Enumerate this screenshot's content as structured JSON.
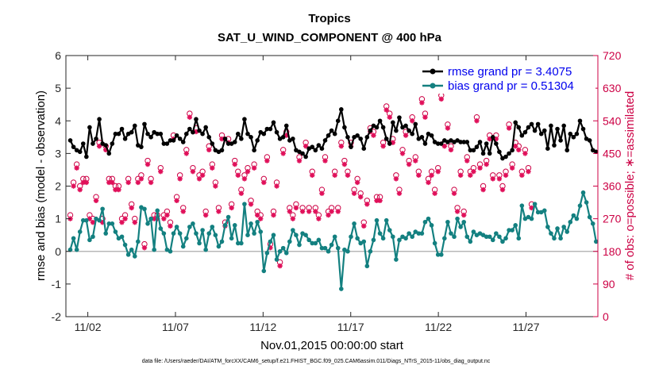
{
  "chart_data": {
    "type": "line",
    "title": "Tropics",
    "subtitle": "SAT_U_WIND_COMPONENT @ 400 hPa",
    "xlabel": "Nov.01,2015 00:00:00 start",
    "ylabel_left": "rmse and bias (model - observation)",
    "ylabel_right": "# of obs: o=possible; ∗=assimilated",
    "footnote": "data file: /Users/raeder/DAI/ATM_forcXX/CAM6_setup/f.e21.FHIST_BGC.f09_025.CAM6assim.011/Diags_NTrS_2015-11/obs_diag_output.nc",
    "xlim": [
      0.75,
      31.1
    ],
    "ylim_left": [
      -2,
      6
    ],
    "ylim_right": [
      0,
      720
    ],
    "x_ticks": [
      2,
      7,
      12,
      17,
      22,
      27
    ],
    "x_tick_labels": [
      "11/02",
      "11/07",
      "11/12",
      "11/17",
      "11/22",
      "11/27"
    ],
    "y_left_ticks": [
      -2,
      -1,
      0,
      1,
      2,
      3,
      4,
      5,
      6
    ],
    "y_left_tick_labels": [
      "-2",
      "-1",
      "0",
      "1",
      "2",
      "3",
      "4",
      "5",
      "6"
    ],
    "y_right_ticks": [
      0,
      90,
      180,
      270,
      360,
      450,
      540,
      630,
      720
    ],
    "y_right_tick_labels": [
      "0",
      "90",
      "180",
      "270",
      "360",
      "450",
      "540",
      "630",
      "720"
    ],
    "series": [
      {
        "name": "rmse grand pr = 3.4075",
        "color": "#000000",
        "values": [
          3.4,
          3.2,
          3.1,
          3.05,
          3.3,
          2.9,
          3.8,
          3.3,
          3.45,
          4.05,
          3.3,
          3.25,
          3.0,
          3.3,
          3.6,
          3.6,
          3.75,
          3.45,
          3.6,
          3.65,
          3.85,
          3.25,
          3.2,
          3.9,
          3.6,
          3.5,
          3.65,
          3.6,
          3.6,
          3.3,
          3.3,
          3.4,
          3.4,
          3.55,
          3.45,
          3.35,
          3.6,
          3.75,
          3.65,
          4.05,
          3.7,
          3.6,
          3.8,
          3.5,
          3.3,
          3.1,
          3.05,
          3.1,
          3.45,
          3.3,
          3.3,
          3.35,
          3.6,
          3.45,
          4.05,
          3.6,
          3.5,
          3.1,
          3.4,
          3.65,
          3.6,
          3.75,
          3.75,
          3.95,
          3.65,
          3.45,
          3.5,
          3.85,
          3.4,
          3.45,
          3.1,
          3.05,
          3.0,
          2.9,
          3.15,
          3.2,
          3.1,
          3.25,
          3.15,
          3.4,
          3.55,
          3.7,
          3.6,
          4.0,
          4.35,
          3.8,
          3.5,
          3.2,
          3.5,
          3.55,
          3.45,
          3.15,
          3.5,
          3.7,
          3.85,
          3.8,
          4.0,
          3.8,
          3.45,
          3.3,
          3.95,
          3.7,
          4.1,
          3.8,
          3.85,
          3.7,
          3.6,
          3.9,
          3.45,
          3.5,
          3.3,
          3.6,
          3.55,
          3.35,
          3.3,
          3.3,
          3.4,
          3.35,
          3.4,
          3.35,
          3.4,
          3.35,
          3.35,
          3.35,
          3.1,
          3.1,
          3.2,
          3.35,
          3.0,
          3.3,
          3.0,
          3.5,
          3.3,
          3.05,
          2.85,
          2.9,
          3.0,
          3.1,
          3.95,
          3.8,
          3.55,
          3.65,
          3.8,
          3.9,
          3.7,
          3.9,
          3.6,
          3.7,
          3.15,
          3.85,
          3.25,
          3.75,
          3.4,
          3.85,
          3.1,
          3.6,
          3.5,
          3.6,
          4.0,
          3.75,
          3.45,
          3.4,
          3.1,
          3.05
        ]
      },
      {
        "name": "bias grand pr = 0.51304",
        "color": "#138080",
        "values": [
          0.05,
          0.4,
          0.05,
          0.6,
          0.95,
          0.95,
          0.35,
          0.45,
          1.0,
          0.95,
          1.3,
          0.55,
          0.85,
          0.85,
          0.6,
          0.4,
          0.45,
          0.2,
          -0.1,
          0.05,
          -0.15,
          0.3,
          1.35,
          1.3,
          0.85,
          1.0,
          0.05,
          1.25,
          0.7,
          0.55,
          0.05,
          0.0,
          0.55,
          0.75,
          0.55,
          0.15,
          0.4,
          0.75,
          0.85,
          0.55,
          0.25,
          0.65,
          0.05,
          0.55,
          0.75,
          0.5,
          0.15,
          0.3,
          0.8,
          1.05,
          0.4,
          0.8,
          0.25,
          0.25,
          1.45,
          0.5,
          0.85,
          0.55,
          0.9,
          0.6,
          -0.6,
          -0.05,
          0.3,
          0.5,
          -0.25,
          0.0,
          0.1,
          -0.05,
          0.3,
          0.65,
          0.5,
          0.2,
          0.55,
          0.5,
          0.35,
          0.25,
          0.25,
          0.35,
          0.1,
          0.1,
          0.0,
          0.2,
          0.45,
          0.1,
          -1.15,
          0.05,
          0.0,
          0.45,
          0.85,
          0.4,
          0.25,
          0.3,
          -0.45,
          0.0,
          0.35,
          0.95,
          0.55,
          0.4,
          0.95,
          0.65,
          0.45,
          -0.25,
          0.35,
          0.45,
          0.4,
          0.55,
          0.45,
          0.6,
          0.55,
          0.55,
          0.9,
          1.0,
          0.8,
          0.25,
          -0.1,
          -0.1,
          0.4,
          0.9,
          0.55,
          0.45,
          1.0,
          0.75,
          0.9,
          0.45,
          0.3,
          0.6,
          0.5,
          0.55,
          0.5,
          0.45,
          0.45,
          0.35,
          0.55,
          0.45,
          0.3,
          0.4,
          0.65,
          0.65,
          0.8,
          0.4,
          1.4,
          1.0,
          1.05,
          1.0,
          1.45,
          1.2,
          1.2,
          1.25,
          0.75,
          0.55,
          0.4,
          0.7,
          0.4,
          0.75,
          0.6,
          0.9,
          1.1,
          1.0,
          1.4,
          1.8,
          1.5,
          1.05,
          0.85,
          0.3
        ]
      }
    ],
    "obs_possible": {
      "name": "# of obs possible",
      "color": "#cc0044",
      "values": [
        280,
        370,
        420,
        360,
        380,
        380,
        280,
        270,
        330,
        480,
        270,
        470,
        380,
        380,
        360,
        360,
        270,
        280,
        380,
        310,
        270,
        380,
        390,
        200,
        430,
        380,
        280,
        280,
        410,
        280,
        290,
        260,
        500,
        330,
        390,
        300,
        460,
        560,
        410,
        520,
        390,
        400,
        290,
        470,
        420,
        370,
        300,
        500,
        260,
        490,
        310,
        430,
        400,
        350,
        390,
        410,
        320,
        420,
        290,
        280,
        380,
        440,
        200,
        290,
        370,
        150,
        460,
        510,
        300,
        280,
        310,
        440,
        300,
        480,
        300,
        400,
        300,
        280,
        350,
        440,
        290,
        300,
        400,
        300,
        480,
        430,
        400,
        480,
        350,
        380,
        340,
        260,
        320,
        520,
        510,
        330,
        330,
        480,
        580,
        560,
        490,
        390,
        350,
        460,
        510,
        430,
        550,
        440,
        400,
        600,
        560,
        380,
        400,
        350,
        410,
        610,
        480,
        530,
        470,
        350,
        300,
        400,
        290,
        440,
        400,
        410,
        550,
        420,
        360,
        430,
        500,
        390,
        500,
        390,
        360,
        400,
        530,
        420,
        480,
        470,
        400,
        460,
        410,
        310
      ]
    },
    "obs_assimilated": {
      "name": "# of obs assimilated",
      "color": "#e0105a",
      "values": [
        270,
        360,
        410,
        350,
        370,
        370,
        270,
        260,
        320,
        470,
        260,
        460,
        370,
        370,
        350,
        350,
        260,
        270,
        370,
        300,
        260,
        370,
        380,
        190,
        420,
        370,
        270,
        270,
        400,
        270,
        280,
        250,
        490,
        320,
        380,
        290,
        450,
        550,
        400,
        510,
        380,
        390,
        280,
        460,
        410,
        360,
        290,
        490,
        250,
        480,
        300,
        420,
        390,
        340,
        380,
        400,
        310,
        410,
        280,
        270,
        370,
        430,
        190,
        280,
        360,
        140,
        450,
        500,
        290,
        270,
        300,
        430,
        290,
        470,
        290,
        390,
        290,
        270,
        340,
        430,
        280,
        290,
        390,
        290,
        470,
        420,
        390,
        470,
        340,
        370,
        330,
        250,
        310,
        510,
        500,
        320,
        320,
        470,
        570,
        550,
        480,
        380,
        340,
        450,
        500,
        420,
        540,
        430,
        390,
        590,
        550,
        370,
        390,
        340,
        400,
        600,
        470,
        520,
        460,
        340,
        290,
        390,
        280,
        430,
        390,
        400,
        540,
        410,
        350,
        420,
        490,
        380,
        490,
        380,
        350,
        390,
        520,
        410,
        470,
        460,
        390,
        450,
        400,
        300
      ]
    },
    "legend_position": "top-right",
    "zero_line": true
  }
}
